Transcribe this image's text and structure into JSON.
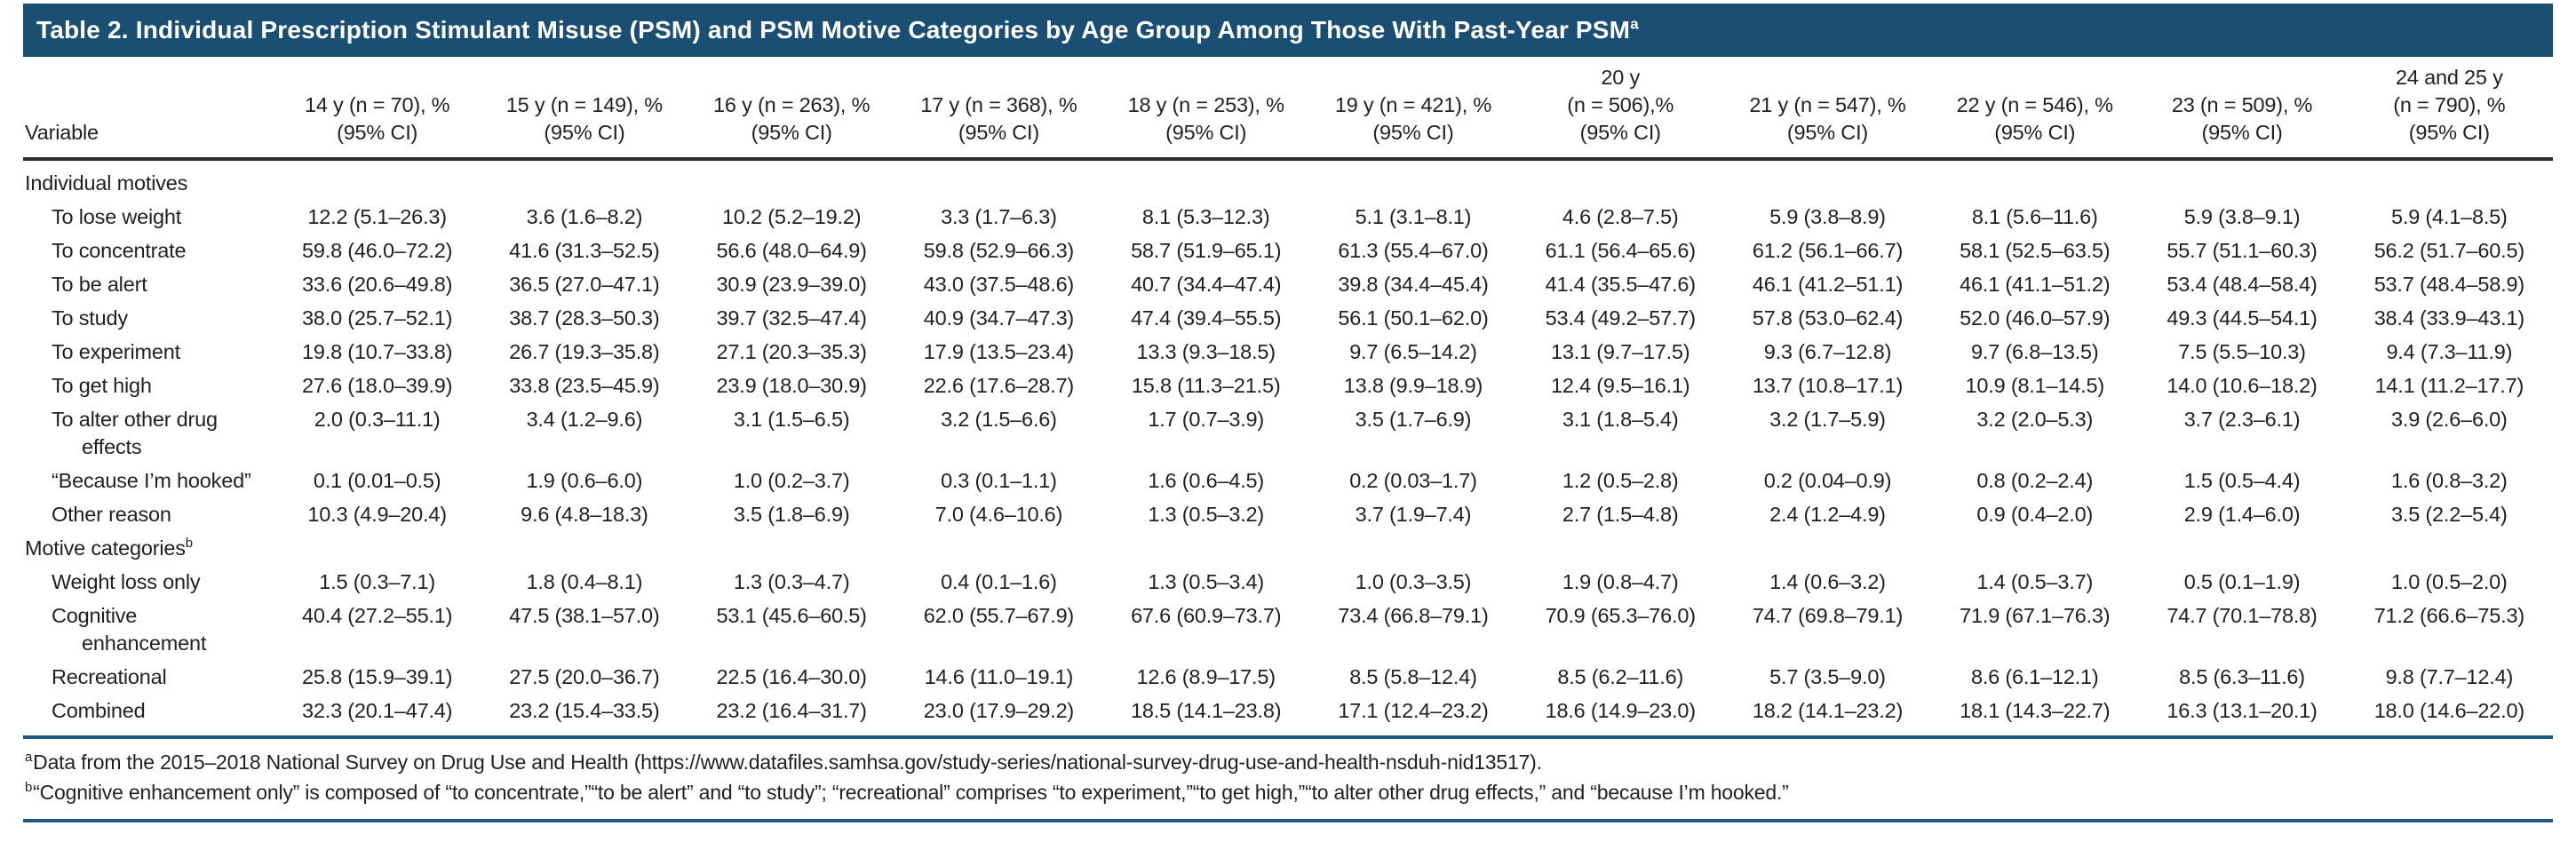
{
  "title": {
    "text": "Table 2. Individual Prescription Stimulant Misuse (PSM) and PSM Motive Categories by Age Group Among Those With Past-Year PSM",
    "marker": "a"
  },
  "table": {
    "variable_header": "Variable",
    "column_headers": [
      [
        "14 y (n = 70), %",
        "(95% CI)"
      ],
      [
        "15 y (n = 149), %",
        "(95% CI)"
      ],
      [
        "16 y (n = 263), %",
        "(95% CI)"
      ],
      [
        "17 y (n = 368), %",
        "(95% CI)"
      ],
      [
        "18 y (n = 253), %",
        "(95% CI)"
      ],
      [
        "19 y (n = 421), %",
        "(95% CI)"
      ],
      [
        "20 y",
        "(n = 506),%",
        "(95% CI)"
      ],
      [
        "21 y (n = 547), %",
        "(95% CI)"
      ],
      [
        "22 y (n = 546), %",
        "(95% CI)"
      ],
      [
        "23 (n = 509), %",
        "(95% CI)"
      ],
      [
        "24 and 25 y",
        "(n = 790), %",
        "(95% CI)"
      ]
    ],
    "rows": [
      {
        "type": "section",
        "label": [
          "Individual motives"
        ]
      },
      {
        "type": "data",
        "label": [
          "To lose weight"
        ],
        "values": [
          "12.2 (5.1–26.3)",
          "3.6 (1.6–8.2)",
          "10.2 (5.2–19.2)",
          "3.3 (1.7–6.3)",
          "8.1 (5.3–12.3)",
          "5.1 (3.1–8.1)",
          "4.6 (2.8–7.5)",
          "5.9 (3.8–8.9)",
          "8.1 (5.6–11.6)",
          "5.9 (3.8–9.1)",
          "5.9 (4.1–8.5)"
        ]
      },
      {
        "type": "data",
        "label": [
          "To concentrate"
        ],
        "values": [
          "59.8 (46.0–72.2)",
          "41.6 (31.3–52.5)",
          "56.6 (48.0–64.9)",
          "59.8 (52.9–66.3)",
          "58.7 (51.9–65.1)",
          "61.3 (55.4–67.0)",
          "61.1 (56.4–65.6)",
          "61.2 (56.1–66.7)",
          "58.1 (52.5–63.5)",
          "55.7 (51.1–60.3)",
          "56.2 (51.7–60.5)"
        ]
      },
      {
        "type": "data",
        "label": [
          "To be alert"
        ],
        "values": [
          "33.6 (20.6–49.8)",
          "36.5 (27.0–47.1)",
          "30.9 (23.9–39.0)",
          "43.0 (37.5–48.6)",
          "40.7 (34.4–47.4)",
          "39.8 (34.4–45.4)",
          "41.4 (35.5–47.6)",
          "46.1 (41.2–51.1)",
          "46.1 (41.1–51.2)",
          "53.4 (48.4–58.4)",
          "53.7 (48.4–58.9)"
        ]
      },
      {
        "type": "data",
        "label": [
          "To study"
        ],
        "values": [
          "38.0 (25.7–52.1)",
          "38.7 (28.3–50.3)",
          "39.7 (32.5–47.4)",
          "40.9 (34.7–47.3)",
          "47.4 (39.4–55.5)",
          "56.1 (50.1–62.0)",
          "53.4 (49.2–57.7)",
          "57.8 (53.0–62.4)",
          "52.0 (46.0–57.9)",
          "49.3 (44.5–54.1)",
          "38.4 (33.9–43.1)"
        ]
      },
      {
        "type": "data",
        "label": [
          "To experiment"
        ],
        "values": [
          "19.8 (10.7–33.8)",
          "26.7 (19.3–35.8)",
          "27.1 (20.3–35.3)",
          "17.9 (13.5–23.4)",
          "13.3 (9.3–18.5)",
          "9.7 (6.5–14.2)",
          "13.1 (9.7–17.5)",
          "9.3 (6.7–12.8)",
          "9.7 (6.8–13.5)",
          "7.5 (5.5–10.3)",
          "9.4 (7.3–11.9)"
        ]
      },
      {
        "type": "data",
        "label": [
          "To get high"
        ],
        "values": [
          "27.6 (18.0–39.9)",
          "33.8 (23.5–45.9)",
          "23.9 (18.0–30.9)",
          "22.6 (17.6–28.7)",
          "15.8 (11.3–21.5)",
          "13.8 (9.9–18.9)",
          "12.4 (9.5–16.1)",
          "13.7 (10.8–17.1)",
          "10.9 (8.1–14.5)",
          "14.0 (10.6–18.2)",
          "14.1 (11.2–17.7)"
        ]
      },
      {
        "type": "data",
        "label": [
          "To alter other drug",
          "effects"
        ],
        "values": [
          "2.0 (0.3–11.1)",
          "3.4 (1.2–9.6)",
          "3.1 (1.5–6.5)",
          "3.2 (1.5–6.6)",
          "1.7 (0.7–3.9)",
          "3.5 (1.7–6.9)",
          "3.1 (1.8–5.4)",
          "3.2 (1.7–5.9)",
          "3.2 (2.0–5.3)",
          "3.7 (2.3–6.1)",
          "3.9 (2.6–6.0)"
        ]
      },
      {
        "type": "data",
        "label": [
          "“Because I’m hooked”"
        ],
        "values": [
          "0.1 (0.01–0.5)",
          "1.9 (0.6–6.0)",
          "1.0 (0.2–3.7)",
          "0.3 (0.1–1.1)",
          "1.6 (0.6–4.5)",
          "0.2 (0.03–1.7)",
          "1.2 (0.5–2.8)",
          "0.2 (0.04–0.9)",
          "0.8 (0.2–2.4)",
          "1.5 (0.5–4.4)",
          "1.6 (0.8–3.2)"
        ]
      },
      {
        "type": "data",
        "label": [
          "Other reason"
        ],
        "values": [
          "10.3 (4.9–20.4)",
          "9.6 (4.8–18.3)",
          "3.5 (1.8–6.9)",
          "7.0 (4.6–10.6)",
          "1.3 (0.5–3.2)",
          "3.7 (1.9–7.4)",
          "2.7 (1.5–4.8)",
          "2.4 (1.2–4.9)",
          "0.9 (0.4–2.0)",
          "2.9 (1.4–6.0)",
          "3.5 (2.2–5.4)"
        ]
      },
      {
        "type": "section",
        "label": [
          "Motive categories"
        ],
        "marker": "b"
      },
      {
        "type": "data",
        "label": [
          "Weight loss only"
        ],
        "values": [
          "1.5 (0.3–7.1)",
          "1.8 (0.4–8.1)",
          "1.3 (0.3–4.7)",
          "0.4 (0.1–1.6)",
          "1.3 (0.5–3.4)",
          "1.0 (0.3–3.5)",
          "1.9 (0.8–4.7)",
          "1.4 (0.6–3.2)",
          "1.4 (0.5–3.7)",
          "0.5 (0.1–1.9)",
          "1.0 (0.5–2.0)"
        ]
      },
      {
        "type": "data",
        "label": [
          "Cognitive",
          "enhancement"
        ],
        "values": [
          "40.4 (27.2–55.1)",
          "47.5 (38.1–57.0)",
          "53.1 (45.6–60.5)",
          "62.0 (55.7–67.9)",
          "67.6 (60.9–73.7)",
          "73.4 (66.8–79.1)",
          "70.9 (65.3–76.0)",
          "74.7 (69.8–79.1)",
          "71.9 (67.1–76.3)",
          "74.7 (70.1–78.8)",
          "71.2 (66.6–75.3)"
        ]
      },
      {
        "type": "data",
        "label": [
          "Recreational"
        ],
        "values": [
          "25.8 (15.9–39.1)",
          "27.5 (20.0–36.7)",
          "22.5 (16.4–30.0)",
          "14.6 (11.0–19.1)",
          "12.6 (8.9–17.5)",
          "8.5 (5.8–12.4)",
          "8.5 (6.2–11.6)",
          "5.7 (3.5–9.0)",
          "8.6 (6.1–12.1)",
          "8.5 (6.3–11.6)",
          "9.8 (7.7–12.4)"
        ]
      },
      {
        "type": "data",
        "label": [
          "Combined"
        ],
        "values": [
          "32.3 (20.1–47.4)",
          "23.2 (15.4–33.5)",
          "23.2 (16.4–31.7)",
          "23.0 (17.9–29.2)",
          "18.5 (14.1–23.8)",
          "17.1 (12.4–23.2)",
          "18.6 (14.9–23.0)",
          "18.2 (14.1–23.2)",
          "18.1 (14.3–22.7)",
          "16.3 (13.1–20.1)",
          "18.0 (14.6–22.0)"
        ]
      }
    ]
  },
  "footnotes": [
    {
      "marker": "a",
      "text": "Data from the 2015–2018 National Survey on Drug Use and Health (https://www.datafiles.samhsa.gov/study-series/national-survey-drug-use-and-health-nsduh-nid13517)."
    },
    {
      "marker": "b",
      "text": "“Cognitive enhancement only” is composed of “to concentrate,”“to be alert” and “to study”; “recreational” comprises “to experiment,”“to get high,”“to alter other drug effects,” and “because I’m hooked.”"
    }
  ],
  "colors": {
    "title_bar": "#1B4E73",
    "rule_blue": "#1F5A82",
    "header_rule": "#2B2B2B",
    "text": "#231F20"
  }
}
